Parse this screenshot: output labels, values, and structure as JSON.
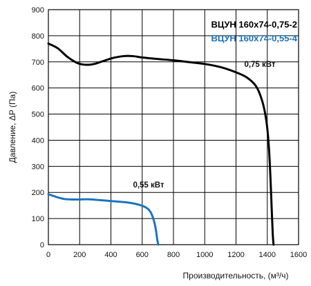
{
  "chart_data": {
    "type": "line",
    "xlabel": "Производительность, (м³/ч)",
    "ylabel": "Давление, ΔP (Па)",
    "xlim": [
      0,
      1600
    ],
    "ylim": [
      0,
      900
    ],
    "xticks": [
      "0",
      "200",
      "400",
      "600",
      "800",
      "1000",
      "1200",
      "1400",
      "1600"
    ],
    "yticks": [
      "0",
      "100",
      "200",
      "300",
      "400",
      "500",
      "600",
      "700",
      "800",
      "900"
    ],
    "grid": true,
    "legend_position": "top-right",
    "series": [
      {
        "name": "ВЦУН 160х74-0,75-2",
        "color": "#000000",
        "annotation": "0,75 кВт",
        "x": [
          0,
          60,
          120,
          180,
          220,
          260,
          300,
          360,
          420,
          480,
          540,
          600,
          700,
          800,
          900,
          1000,
          1100,
          1200,
          1270,
          1330,
          1370,
          1395,
          1410,
          1420,
          1428,
          1435,
          1440
        ],
        "y": [
          770,
          752,
          720,
          697,
          690,
          689,
          693,
          705,
          716,
          722,
          722,
          717,
          711,
          706,
          699,
          692,
          680,
          660,
          640,
          605,
          545,
          470,
          375,
          260,
          140,
          40,
          0
        ]
      },
      {
        "name": "ВЦУН 160х74-0,55-4",
        "color": "#1a73be",
        "annotation": "0,55 кВт",
        "x": [
          0,
          30,
          60,
          100,
          150,
          200,
          250,
          300,
          400,
          500,
          550,
          600,
          630,
          650,
          665,
          678,
          688,
          695,
          700,
          703
        ],
        "y": [
          193,
          187,
          181,
          175,
          173,
          173,
          174,
          172,
          167,
          162,
          157,
          149,
          140,
          128,
          110,
          85,
          55,
          25,
          8,
          0
        ]
      }
    ]
  }
}
